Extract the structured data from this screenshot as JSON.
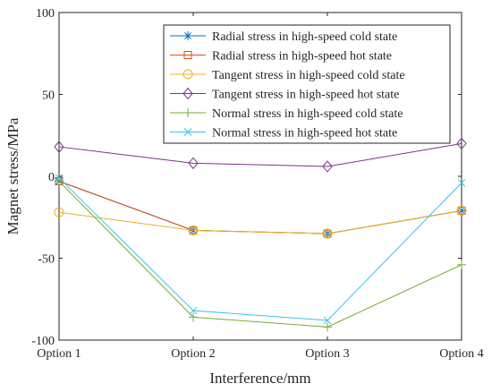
{
  "chart_data": {
    "type": "line",
    "title": "",
    "xlabel": "Interference/mm",
    "ylabel": "Magnet stress/MPa",
    "categories": [
      "Option 1",
      "Option 2",
      "Option 3",
      "Option 4"
    ],
    "ylim": [
      -100,
      100
    ],
    "yticks": [
      "100",
      "50",
      "0",
      "-50",
      "-100"
    ],
    "grid": false,
    "legend_position": "top-right",
    "series": [
      {
        "name": "Radial stress in high-speed cold state",
        "color": "#0072BD",
        "marker": "asterisk",
        "values": [
          -3,
          -33,
          -35,
          -21
        ]
      },
      {
        "name": "Radial stress in high-speed hot state",
        "color": "#D95319",
        "marker": "square",
        "values": [
          -3,
          -33,
          -35,
          -21
        ]
      },
      {
        "name": "Tangent stress in high-speed cold state",
        "color": "#EDB120",
        "marker": "circle",
        "values": [
          -22,
          -33,
          -35,
          -21
        ]
      },
      {
        "name": "Tangent stress in high-speed hot state",
        "color": "#7E2F8E",
        "marker": "diamond",
        "values": [
          18,
          8,
          6,
          20
        ]
      },
      {
        "name": "Normal stress in high-speed cold state",
        "color": "#77AC30",
        "marker": "plus",
        "values": [
          -3,
          -86,
          -92,
          -54
        ]
      },
      {
        "name": "Normal stress in high-speed hot state",
        "color": "#33C3F0",
        "marker": "x",
        "values": [
          -1,
          -82,
          -88,
          -4
        ]
      }
    ]
  }
}
